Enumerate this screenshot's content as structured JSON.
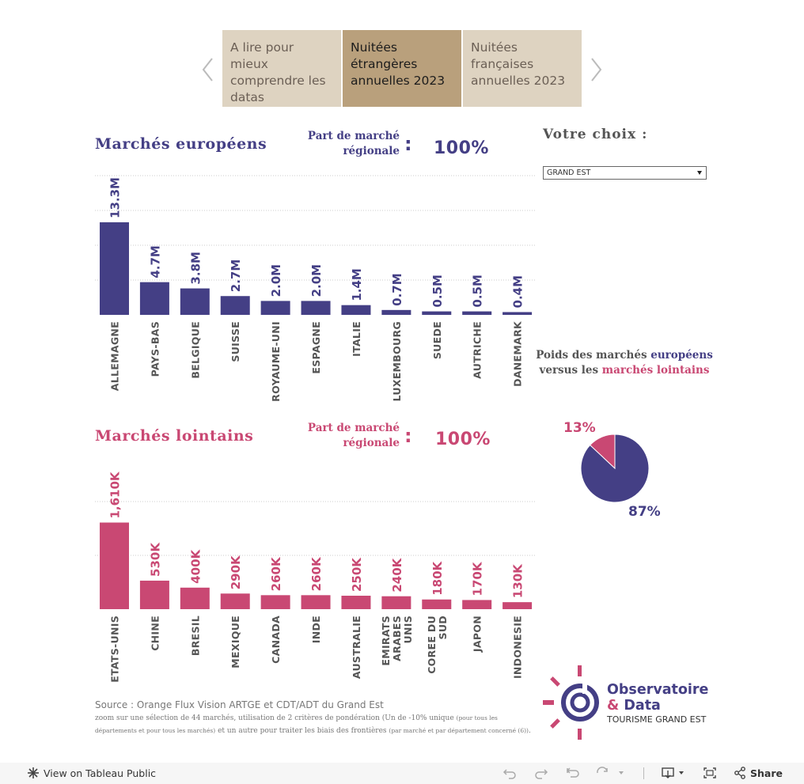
{
  "tabs": [
    {
      "label": "A lire pour mieux comprendre les datas"
    },
    {
      "label": "Nuitées étrangères annuelles 2023"
    },
    {
      "label": "Nuitées françaises annuelles 2023"
    }
  ],
  "europe": {
    "title": "Marchés européens",
    "part_label_1": "Part de marché",
    "part_label_2": "régionale",
    "colon": ":",
    "part_value": "100%"
  },
  "lointains": {
    "title": "Marchés lointains",
    "part_label_1": "Part de marché",
    "part_label_2": "régionale",
    "colon": ":",
    "part_value": "100%"
  },
  "choice": {
    "title": "Votre choix :",
    "selected": "GRAND EST"
  },
  "poids": {
    "line1_a": "Poids des marchés ",
    "line1_b": "européens",
    "line2_a": "versus les ",
    "line2_b": "marchés lointains"
  },
  "colors": {
    "europe": "#443f85",
    "lointains": "#c94873"
  },
  "chart_data": [
    {
      "type": "bar",
      "title": "Marchés européens",
      "categories": [
        "ALLEMAGNE",
        "PAYS-BAS",
        "BELGIQUE",
        "SUISSE",
        "ROYAUME-UNI",
        "ESPAGNE",
        "ITALIE",
        "LUXEMBOURG",
        "SUEDE",
        "AUTRICHE",
        "DANEMARK"
      ],
      "values": [
        13.3,
        4.7,
        3.8,
        2.7,
        2.0,
        2.0,
        1.4,
        0.7,
        0.5,
        0.5,
        0.4
      ],
      "labels": [
        "13.3M",
        "4.7M",
        "3.8M",
        "2.7M",
        "2.0M",
        "2.0M",
        "1.4M",
        "0.7M",
        "0.5M",
        "0.5M",
        "0.4M"
      ],
      "unit": "M",
      "ylim": [
        0,
        20
      ]
    },
    {
      "type": "bar",
      "title": "Marchés lointains",
      "categories": [
        "ETATS-UNIS",
        "CHINE",
        "BRESIL",
        "MEXIQUE",
        "CANADA",
        "INDE",
        "AUSTRALIE",
        "EMIRATS ARABES UNIS",
        "COREE DU SUD",
        "JAPON",
        "INDONESIE"
      ],
      "values": [
        1610,
        530,
        400,
        290,
        260,
        260,
        250,
        240,
        180,
        170,
        130
      ],
      "labels": [
        "1,610K",
        "530K",
        "400K",
        "290K",
        "260K",
        "260K",
        "250K",
        "240K",
        "180K",
        "170K",
        "130K"
      ],
      "unit": "K",
      "ylim": [
        0,
        2000
      ]
    },
    {
      "type": "pie",
      "title": "Poids des marchés européens versus les marchés lointains",
      "categories": [
        "marchés européens",
        "marchés lointains"
      ],
      "values": [
        87,
        13
      ],
      "labels": [
        "87%",
        "13%"
      ]
    }
  ],
  "logo": {
    "line1": "Observatoire",
    "line2_amp": "&",
    "line2": " Data",
    "line3": "TOURISME GRAND EST"
  },
  "source": {
    "line1": "Source : Orange Flux Vision ARTGE et CDT/ADT du Grand Est",
    "line2_a": "zoom sur une sélection de 44 marchés, utilisation de 2 critères de pondération (Un de -10% unique ",
    "line2_b": "(pour tous les",
    "line3_a": "départements et pour tous les marchés)",
    "line3_b": " et un autre pour traiter les biais des frontières ",
    "line3_c": "(par marché et par département concerné (6))",
    "line3_d": "."
  },
  "footer": {
    "view_label": "View on Tableau Public",
    "share_label": "Share"
  }
}
